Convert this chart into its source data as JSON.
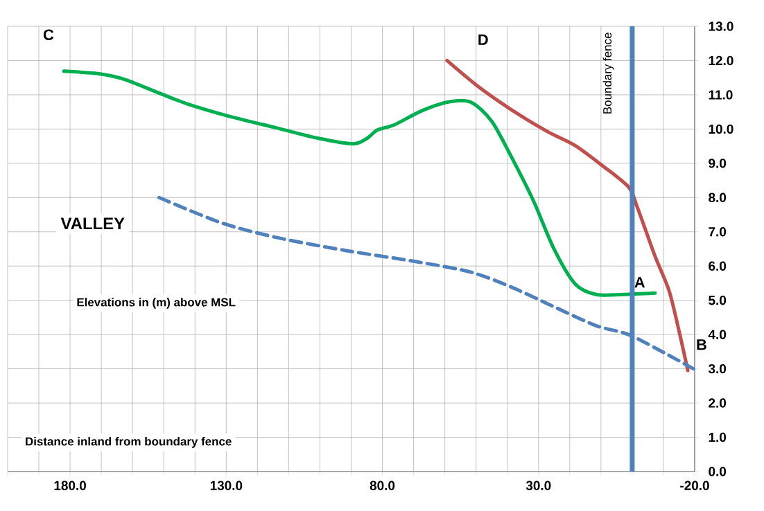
{
  "chart_data": {
    "type": "line",
    "xlabel": "Distance inland from boundary fence",
    "ylabel": "Elevations in (m) above MSL",
    "xlim": [
      200,
      -20
    ],
    "ylim": [
      0,
      13
    ],
    "xticks": [
      {
        "value": 200,
        "label": null
      },
      {
        "value": 190,
        "label": null
      },
      {
        "value": 180,
        "label": "180.0"
      },
      {
        "value": 170,
        "label": null
      },
      {
        "value": 160,
        "label": null
      },
      {
        "value": 150,
        "label": null
      },
      {
        "value": 140,
        "label": null
      },
      {
        "value": 130,
        "label": "130.0"
      },
      {
        "value": 120,
        "label": null
      },
      {
        "value": 110,
        "label": null
      },
      {
        "value": 100,
        "label": null
      },
      {
        "value": 90,
        "label": null
      },
      {
        "value": 80,
        "label": "80.0"
      },
      {
        "value": 70,
        "label": null
      },
      {
        "value": 60,
        "label": null
      },
      {
        "value": 50,
        "label": null
      },
      {
        "value": 40,
        "label": null
      },
      {
        "value": 30,
        "label": "30.0"
      },
      {
        "value": 20,
        "label": null
      },
      {
        "value": 10,
        "label": null
      },
      {
        "value": 0,
        "label": null
      },
      {
        "value": -10,
        "label": null
      },
      {
        "value": -20,
        "label": "-20.0"
      }
    ],
    "yticks": [
      {
        "value": 0,
        "label": "0.0"
      },
      {
        "value": 1,
        "label": "1.0"
      },
      {
        "value": 2,
        "label": "2.0"
      },
      {
        "value": 3,
        "label": "3.0"
      },
      {
        "value": 4,
        "label": "4.0"
      },
      {
        "value": 5,
        "label": "5.0"
      },
      {
        "value": 6,
        "label": "6.0"
      },
      {
        "value": 7,
        "label": "7.0"
      },
      {
        "value": 8,
        "label": "8.0"
      },
      {
        "value": 9,
        "label": "9.0"
      },
      {
        "value": 10,
        "label": "10.0"
      },
      {
        "value": 11,
        "label": "11.0"
      },
      {
        "value": 12,
        "label": "12.0"
      },
      {
        "value": 13,
        "label": "13.0"
      }
    ],
    "grid": true,
    "series": [
      {
        "color": "#00b050",
        "line_style": "solid",
        "x": [
          182,
          170.4,
          162.6,
          151.5,
          142.6,
          129.3,
          113.8,
          100.5,
          89.4,
          84.9,
          81.6,
          76,
          67.2,
          58.3,
          51.6,
          45,
          38.3,
          31.6,
          25,
          18.3,
          11.6,
          2.7,
          -7.3
        ],
        "values": [
          11.69,
          11.61,
          11.45,
          11.05,
          10.74,
          10.38,
          10.03,
          9.73,
          9.57,
          9.73,
          9.97,
          10.13,
          10.54,
          10.8,
          10.78,
          10.23,
          9.12,
          7.9,
          6.49,
          5.48,
          5.17,
          5.17,
          5.21
        ]
      },
      {
        "color": "#c0504d",
        "line_style": "solid",
        "x": [
          59.3,
          49.3,
          38.3,
          27.2,
          18.3,
          9.4,
          1.2,
          -1.7,
          -7.3,
          -11.8,
          -15.1,
          -17.8
        ],
        "values": [
          12.0,
          11.24,
          10.54,
          9.93,
          9.52,
          8.92,
          8.31,
          7.7,
          6.29,
          5.28,
          4.06,
          2.95
        ]
      },
      {
        "color": "#4f81bd",
        "line_style": "dashed",
        "x": [
          151.5,
          131.5,
          113.7,
          91.5,
          69.3,
          51.6,
          38.3,
          25,
          11.6,
          1.2,
          -10.6,
          -19.6
        ],
        "values": [
          8.0,
          7.26,
          6.83,
          6.45,
          6.13,
          5.82,
          5.37,
          4.81,
          4.26,
          4.0,
          3.45,
          3.0
        ]
      }
    ],
    "ref_lines": [
      {
        "axis": "x",
        "value": 0,
        "label": "Boundary fence",
        "color": "#4f81bd"
      }
    ],
    "annotations": [
      "VALLEY",
      "C",
      "D",
      "A",
      "B"
    ]
  }
}
